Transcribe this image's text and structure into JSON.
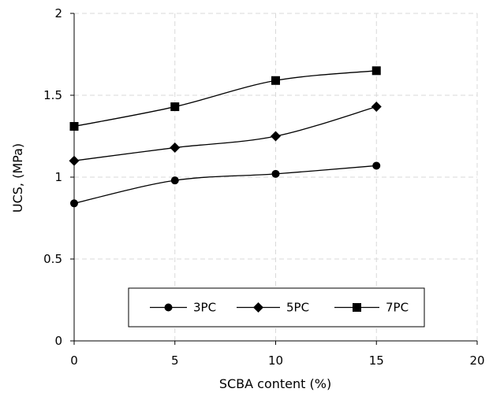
{
  "chart_data": {
    "type": "line",
    "title": "",
    "xlabel": "SCBA content (%)",
    "ylabel": "UCS, (MPa)",
    "xlim": [
      0,
      20
    ],
    "ylim": [
      0,
      2
    ],
    "x_ticks": [
      "0",
      "5",
      "10",
      "15",
      "20"
    ],
    "y_ticks": [
      "0",
      "0.5",
      "1",
      "1.5",
      "2"
    ],
    "grid": true,
    "legend_position": "bottom-center",
    "x": [
      0,
      5,
      10,
      15
    ],
    "series": [
      {
        "name": "3PC",
        "marker": "circle",
        "values": [
          0.84,
          0.98,
          1.02,
          1.07
        ]
      },
      {
        "name": "5PC",
        "marker": "diamond",
        "values": [
          1.1,
          1.18,
          1.25,
          1.43
        ]
      },
      {
        "name": "7PC",
        "marker": "square",
        "values": [
          1.31,
          1.43,
          1.59,
          1.65
        ]
      }
    ],
    "colors": {
      "line": "#000000",
      "grid": "#d9d9d9"
    }
  }
}
